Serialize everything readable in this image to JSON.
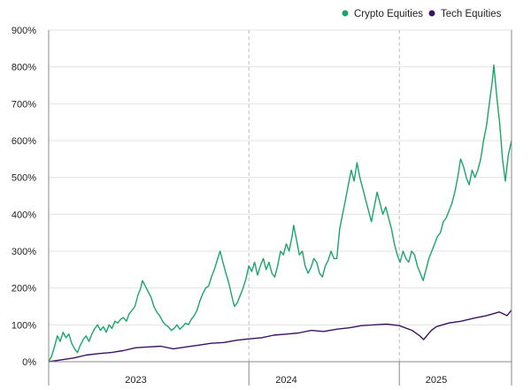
{
  "chart_data": {
    "type": "line",
    "title": "",
    "xlabel": "",
    "ylabel": "",
    "ylim": [
      0,
      900
    ],
    "xlim": [
      "2022-09-01",
      "2025-10-01"
    ],
    "y_ticks": [
      0,
      100,
      200,
      300,
      400,
      500,
      600,
      700,
      800,
      900
    ],
    "y_tick_suffix": "%",
    "x_tick_labels": [
      {
        "label": "2023",
        "at": "2023-04-01"
      },
      {
        "label": "2024",
        "at": "2024-04-01"
      },
      {
        "label": "2025",
        "at": "2025-04-01"
      }
    ],
    "year_dividers": [
      "2024-01-01",
      "2025-01-01"
    ],
    "grid": "horizontal",
    "legend_position": "top-right",
    "series": [
      {
        "name": "Crypto Equities",
        "color": "#1aa56a",
        "points": [
          [
            "2022-09-01",
            0
          ],
          [
            "2022-09-08",
            15
          ],
          [
            "2022-09-15",
            40
          ],
          [
            "2022-09-22",
            70
          ],
          [
            "2022-09-29",
            55
          ],
          [
            "2022-10-06",
            80
          ],
          [
            "2022-10-13",
            65
          ],
          [
            "2022-10-20",
            75
          ],
          [
            "2022-10-27",
            50
          ],
          [
            "2022-11-03",
            35
          ],
          [
            "2022-11-10",
            25
          ],
          [
            "2022-11-17",
            45
          ],
          [
            "2022-11-24",
            60
          ],
          [
            "2022-12-01",
            70
          ],
          [
            "2022-12-08",
            55
          ],
          [
            "2022-12-15",
            75
          ],
          [
            "2022-12-22",
            90
          ],
          [
            "2022-12-29",
            100
          ],
          [
            "2023-01-05",
            85
          ],
          [
            "2023-01-12",
            95
          ],
          [
            "2023-01-19",
            80
          ],
          [
            "2023-01-26",
            100
          ],
          [
            "2023-02-02",
            90
          ],
          [
            "2023-02-09",
            110
          ],
          [
            "2023-02-16",
            105
          ],
          [
            "2023-02-23",
            115
          ],
          [
            "2023-03-02",
            120
          ],
          [
            "2023-03-09",
            110
          ],
          [
            "2023-03-16",
            130
          ],
          [
            "2023-03-23",
            140
          ],
          [
            "2023-03-30",
            150
          ],
          [
            "2023-04-06",
            180
          ],
          [
            "2023-04-13",
            200
          ],
          [
            "2023-04-17",
            220
          ],
          [
            "2023-04-24",
            205
          ],
          [
            "2023-05-01",
            190
          ],
          [
            "2023-05-08",
            175
          ],
          [
            "2023-05-15",
            150
          ],
          [
            "2023-05-22",
            135
          ],
          [
            "2023-05-29",
            125
          ],
          [
            "2023-06-05",
            110
          ],
          [
            "2023-06-12",
            100
          ],
          [
            "2023-06-19",
            95
          ],
          [
            "2023-06-26",
            85
          ],
          [
            "2023-07-03",
            90
          ],
          [
            "2023-07-10",
            100
          ],
          [
            "2023-07-17",
            88
          ],
          [
            "2023-07-24",
            95
          ],
          [
            "2023-07-31",
            105
          ],
          [
            "2023-08-07",
            100
          ],
          [
            "2023-08-14",
            115
          ],
          [
            "2023-08-21",
            125
          ],
          [
            "2023-08-28",
            140
          ],
          [
            "2023-09-04",
            165
          ],
          [
            "2023-09-11",
            185
          ],
          [
            "2023-09-18",
            200
          ],
          [
            "2023-09-25",
            205
          ],
          [
            "2023-10-02",
            230
          ],
          [
            "2023-10-09",
            250
          ],
          [
            "2023-10-16",
            275
          ],
          [
            "2023-10-23",
            300
          ],
          [
            "2023-10-30",
            270
          ],
          [
            "2023-11-06",
            240
          ],
          [
            "2023-11-13",
            215
          ],
          [
            "2023-11-20",
            180
          ],
          [
            "2023-11-27",
            150
          ],
          [
            "2023-12-04",
            160
          ],
          [
            "2023-12-11",
            180
          ],
          [
            "2023-12-18",
            200
          ],
          [
            "2023-12-25",
            225
          ],
          [
            "2024-01-01",
            260
          ],
          [
            "2024-01-08",
            245
          ],
          [
            "2024-01-15",
            270
          ],
          [
            "2024-01-22",
            235
          ],
          [
            "2024-01-29",
            260
          ],
          [
            "2024-02-05",
            280
          ],
          [
            "2024-02-12",
            250
          ],
          [
            "2024-02-19",
            270
          ],
          [
            "2024-02-26",
            240
          ],
          [
            "2024-03-04",
            230
          ],
          [
            "2024-03-11",
            260
          ],
          [
            "2024-03-18",
            300
          ],
          [
            "2024-03-25",
            290
          ],
          [
            "2024-04-01",
            320
          ],
          [
            "2024-04-08",
            300
          ],
          [
            "2024-04-15",
            340
          ],
          [
            "2024-04-19",
            370
          ],
          [
            "2024-04-26",
            330
          ],
          [
            "2024-05-03",
            290
          ],
          [
            "2024-05-10",
            300
          ],
          [
            "2024-05-17",
            260
          ],
          [
            "2024-05-24",
            240
          ],
          [
            "2024-05-31",
            255
          ],
          [
            "2024-06-07",
            280
          ],
          [
            "2024-06-14",
            270
          ],
          [
            "2024-06-21",
            240
          ],
          [
            "2024-06-28",
            230
          ],
          [
            "2024-07-05",
            260
          ],
          [
            "2024-07-12",
            275
          ],
          [
            "2024-07-19",
            300
          ],
          [
            "2024-07-26",
            280
          ],
          [
            "2024-08-02",
            280
          ],
          [
            "2024-08-09",
            360
          ],
          [
            "2024-08-16",
            400
          ],
          [
            "2024-08-23",
            440
          ],
          [
            "2024-08-30",
            480
          ],
          [
            "2024-09-06",
            520
          ],
          [
            "2024-09-13",
            490
          ],
          [
            "2024-09-20",
            540
          ],
          [
            "2024-09-27",
            500
          ],
          [
            "2024-10-04",
            470
          ],
          [
            "2024-10-11",
            440
          ],
          [
            "2024-10-18",
            410
          ],
          [
            "2024-10-25",
            380
          ],
          [
            "2024-11-01",
            420
          ],
          [
            "2024-11-08",
            460
          ],
          [
            "2024-11-15",
            430
          ],
          [
            "2024-11-22",
            400
          ],
          [
            "2024-11-29",
            420
          ],
          [
            "2024-12-06",
            390
          ],
          [
            "2024-12-13",
            360
          ],
          [
            "2024-12-20",
            320
          ],
          [
            "2024-12-27",
            290
          ],
          [
            "2025-01-03",
            270
          ],
          [
            "2025-01-10",
            300
          ],
          [
            "2025-01-17",
            280
          ],
          [
            "2025-01-24",
            270
          ],
          [
            "2025-01-31",
            300
          ],
          [
            "2025-02-07",
            290
          ],
          [
            "2025-02-14",
            260
          ],
          [
            "2025-02-21",
            240
          ],
          [
            "2025-02-28",
            220
          ],
          [
            "2025-03-07",
            250
          ],
          [
            "2025-03-14",
            280
          ],
          [
            "2025-03-21",
            300
          ],
          [
            "2025-03-28",
            320
          ],
          [
            "2025-04-04",
            340
          ],
          [
            "2025-04-11",
            350
          ],
          [
            "2025-04-18",
            380
          ],
          [
            "2025-04-25",
            390
          ],
          [
            "2025-05-02",
            410
          ],
          [
            "2025-05-09",
            430
          ],
          [
            "2025-05-16",
            460
          ],
          [
            "2025-05-23",
            500
          ],
          [
            "2025-05-30",
            550
          ],
          [
            "2025-06-06",
            530
          ],
          [
            "2025-06-13",
            500
          ],
          [
            "2025-06-20",
            480
          ],
          [
            "2025-06-27",
            520
          ],
          [
            "2025-07-04",
            500
          ],
          [
            "2025-07-11",
            520
          ],
          [
            "2025-07-18",
            550
          ],
          [
            "2025-07-25",
            600
          ],
          [
            "2025-08-01",
            640
          ],
          [
            "2025-08-08",
            700
          ],
          [
            "2025-08-15",
            760
          ],
          [
            "2025-08-19",
            805
          ],
          [
            "2025-08-26",
            720
          ],
          [
            "2025-09-02",
            650
          ],
          [
            "2025-09-09",
            550
          ],
          [
            "2025-09-16",
            490
          ],
          [
            "2025-09-23",
            560
          ],
          [
            "2025-10-01",
            600
          ]
        ]
      },
      {
        "name": "Tech Equities",
        "color": "#3b1363",
        "points": [
          [
            "2022-09-01",
            0
          ],
          [
            "2022-10-01",
            5
          ],
          [
            "2022-11-01",
            10
          ],
          [
            "2022-12-01",
            18
          ],
          [
            "2023-01-01",
            22
          ],
          [
            "2023-02-01",
            25
          ],
          [
            "2023-03-01",
            30
          ],
          [
            "2023-04-01",
            38
          ],
          [
            "2023-05-01",
            40
          ],
          [
            "2023-06-01",
            42
          ],
          [
            "2023-07-01",
            35
          ],
          [
            "2023-08-01",
            40
          ],
          [
            "2023-09-01",
            45
          ],
          [
            "2023-10-01",
            50
          ],
          [
            "2023-11-01",
            52
          ],
          [
            "2023-12-01",
            58
          ],
          [
            "2024-01-01",
            62
          ],
          [
            "2024-02-01",
            65
          ],
          [
            "2024-03-01",
            72
          ],
          [
            "2024-04-01",
            75
          ],
          [
            "2024-05-01",
            78
          ],
          [
            "2024-06-01",
            85
          ],
          [
            "2024-07-01",
            82
          ],
          [
            "2024-08-01",
            88
          ],
          [
            "2024-09-01",
            92
          ],
          [
            "2024-10-01",
            98
          ],
          [
            "2024-11-01",
            100
          ],
          [
            "2024-12-01",
            102
          ],
          [
            "2025-01-01",
            98
          ],
          [
            "2025-02-01",
            85
          ],
          [
            "2025-02-20",
            70
          ],
          [
            "2025-03-01",
            60
          ],
          [
            "2025-03-20",
            85
          ],
          [
            "2025-04-01",
            95
          ],
          [
            "2025-05-01",
            105
          ],
          [
            "2025-06-01",
            110
          ],
          [
            "2025-07-01",
            118
          ],
          [
            "2025-08-01",
            125
          ],
          [
            "2025-09-01",
            135
          ],
          [
            "2025-09-20",
            125
          ],
          [
            "2025-10-01",
            140
          ]
        ]
      }
    ]
  }
}
